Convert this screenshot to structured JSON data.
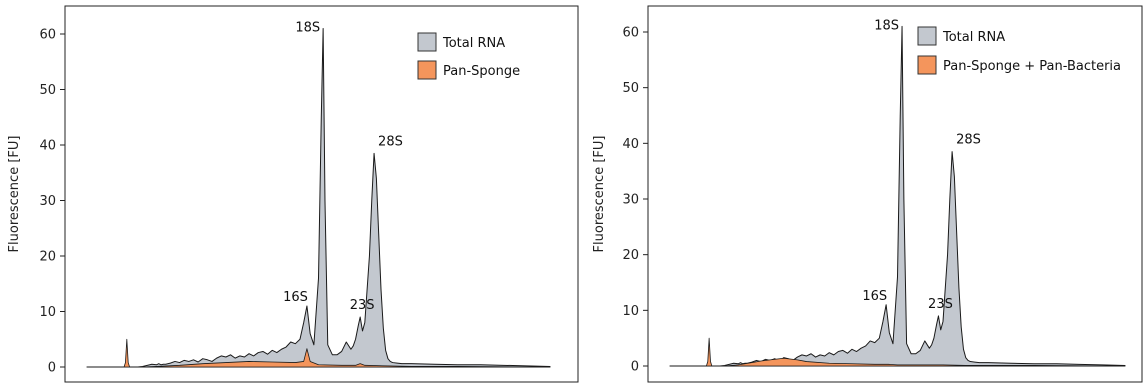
{
  "chart_data": [
    {
      "type": "area",
      "ylabel": "Fluorescence [FU]",
      "ylim": [
        0,
        64
      ],
      "yticks": [
        0,
        10,
        20,
        30,
        40,
        50,
        60
      ],
      "xlim": [
        0,
        100
      ],
      "legend_position": "top-right",
      "series": [
        {
          "name": "Total RNA",
          "color": "#c3c8cf",
          "x": [
            0,
            6,
            7,
            8.2,
            9,
            10,
            11,
            12,
            13,
            14,
            15,
            15.5,
            16,
            16.5,
            17,
            18,
            19,
            20,
            21,
            22,
            23,
            24,
            25,
            26,
            27,
            28,
            29,
            30,
            31,
            32,
            33,
            34,
            35,
            36,
            37,
            38,
            39,
            40,
            41,
            42,
            43,
            44,
            45,
            46,
            46.8,
            47.5,
            48.2,
            49,
            50,
            50.6,
            51,
            51.4,
            52,
            53,
            54,
            55,
            56,
            57,
            57.5,
            58,
            58.6,
            59,
            59.5,
            60,
            61,
            61.5,
            62,
            62.5,
            63,
            63.5,
            64,
            64.5,
            65,
            65.5,
            66,
            67,
            68,
            70,
            75,
            80,
            85,
            90,
            95,
            100
          ],
          "values": [
            0,
            0,
            0,
            0,
            0,
            0,
            0,
            0.1,
            0.3,
            0.5,
            0.4,
            0.6,
            0.4,
            0.5,
            0.5,
            0.7,
            1,
            0.8,
            1.2,
            1.0,
            1.3,
            0.9,
            1.5,
            1.3,
            1.0,
            1.6,
            2.0,
            1.8,
            2.2,
            1.6,
            2.0,
            1.8,
            2.4,
            2.0,
            2.6,
            2.8,
            2.3,
            3.0,
            2.6,
            3.2,
            3.6,
            4.5,
            4.2,
            5.0,
            8.0,
            11.0,
            6.0,
            4.0,
            16.0,
            45.0,
            61.0,
            30.0,
            4.0,
            2.2,
            2.2,
            2.8,
            4.5,
            3.2,
            3.8,
            5.0,
            7.5,
            9.0,
            6.5,
            8.0,
            20.0,
            30.0,
            38.5,
            34.0,
            24.0,
            14.0,
            7.0,
            3.0,
            1.5,
            1.0,
            0.8,
            0.7,
            0.6,
            0.6,
            0.5,
            0.4,
            0.4,
            0.3,
            0.2,
            0.1
          ],
          "annotations": [
            {
              "label": "18S",
              "x": 51,
              "y": 61
            },
            {
              "label": "16S",
              "x": 47.5,
              "y": 11
            },
            {
              "label": "23S",
              "x": 59,
              "y": 9
            },
            {
              "label": "28S",
              "x": 62,
              "y": 38.5
            }
          ]
        },
        {
          "name": "Pan-Sponge",
          "color": "#f4955c",
          "x": [
            0,
            8.0,
            8.3,
            8.6,
            8.9,
            9.2,
            9.6,
            12,
            15,
            20,
            25,
            30,
            35,
            40,
            45,
            46.8,
            47.5,
            48.2,
            50,
            55,
            58,
            59,
            60,
            65,
            70,
            80,
            90,
            100
          ],
          "values": [
            0,
            0,
            0.8,
            5.0,
            0.8,
            0,
            0,
            0,
            0.1,
            0.3,
            0.6,
            0.8,
            1.0,
            0.9,
            0.8,
            1.0,
            3.3,
            1.0,
            0.4,
            0.3,
            0.3,
            0.6,
            0.3,
            0.2,
            0.1,
            0.1,
            0.05,
            0
          ]
        }
      ]
    },
    {
      "type": "area",
      "ylabel": "Fluorescence [FU]",
      "ylim": [
        0,
        64
      ],
      "yticks": [
        0,
        10,
        20,
        30,
        40,
        50,
        60
      ],
      "xlim": [
        0,
        100
      ],
      "legend_position": "top-right",
      "series": [
        {
          "name": "Total RNA",
          "color": "#c3c8cf",
          "x": [
            0,
            6,
            7,
            8.2,
            9,
            10,
            11,
            12,
            13,
            14,
            15,
            15.5,
            16,
            16.5,
            17,
            18,
            19,
            20,
            21,
            22,
            23,
            24,
            25,
            26,
            27,
            28,
            29,
            30,
            31,
            32,
            33,
            34,
            35,
            36,
            37,
            38,
            39,
            40,
            41,
            42,
            43,
            44,
            45,
            46,
            46.8,
            47.5,
            48.2,
            49,
            50,
            50.6,
            51,
            51.4,
            52,
            53,
            54,
            55,
            56,
            57,
            57.5,
            58,
            58.6,
            59,
            59.5,
            60,
            61,
            61.5,
            62,
            62.5,
            63,
            63.5,
            64,
            64.5,
            65,
            65.5,
            66,
            67,
            68,
            70,
            75,
            80,
            85,
            90,
            95,
            100
          ],
          "values": [
            0,
            0,
            0,
            0,
            0,
            0,
            0,
            0.1,
            0.3,
            0.5,
            0.4,
            0.6,
            0.4,
            0.5,
            0.5,
            0.7,
            1,
            0.8,
            1.2,
            1.0,
            1.3,
            0.9,
            1.5,
            1.3,
            1.0,
            1.6,
            2.0,
            1.8,
            2.2,
            1.6,
            2.0,
            1.8,
            2.4,
            2.0,
            2.6,
            2.8,
            2.3,
            3.0,
            2.6,
            3.2,
            3.6,
            4.5,
            4.2,
            5.0,
            8.0,
            11.0,
            6.0,
            4.0,
            16.0,
            45.0,
            61.0,
            30.0,
            4.0,
            2.2,
            2.2,
            2.8,
            4.5,
            3.2,
            3.8,
            5.0,
            7.5,
            9.0,
            6.5,
            8.0,
            20.0,
            30.0,
            38.5,
            34.0,
            24.0,
            14.0,
            7.0,
            3.0,
            1.5,
            1.0,
            0.8,
            0.7,
            0.6,
            0.6,
            0.5,
            0.4,
            0.4,
            0.3,
            0.2,
            0.1
          ],
          "annotations": [
            {
              "label": "18S",
              "x": 51,
              "y": 61
            },
            {
              "label": "16S",
              "x": 47.5,
              "y": 11
            },
            {
              "label": "23S",
              "x": 59,
              "y": 9
            },
            {
              "label": "28S",
              "x": 62,
              "y": 38.5
            }
          ]
        },
        {
          "name": "Pan-Sponge + Pan-Bacteria",
          "color": "#f4955c",
          "x": [
            0,
            8.0,
            8.3,
            8.6,
            8.9,
            9.2,
            9.6,
            12,
            15,
            18,
            20,
            22,
            25,
            28,
            30,
            35,
            40,
            45,
            48,
            50,
            55,
            60,
            65,
            70,
            80,
            90,
            100
          ],
          "values": [
            0,
            0,
            0.8,
            5.0,
            0.8,
            0,
            0,
            0,
            0.2,
            0.6,
            0.9,
            1.1,
            1.4,
            1.1,
            0.8,
            0.5,
            0.4,
            0.3,
            0.3,
            0.2,
            0.2,
            0.2,
            0.1,
            0.1,
            0.1,
            0.05,
            0
          ]
        }
      ]
    }
  ]
}
